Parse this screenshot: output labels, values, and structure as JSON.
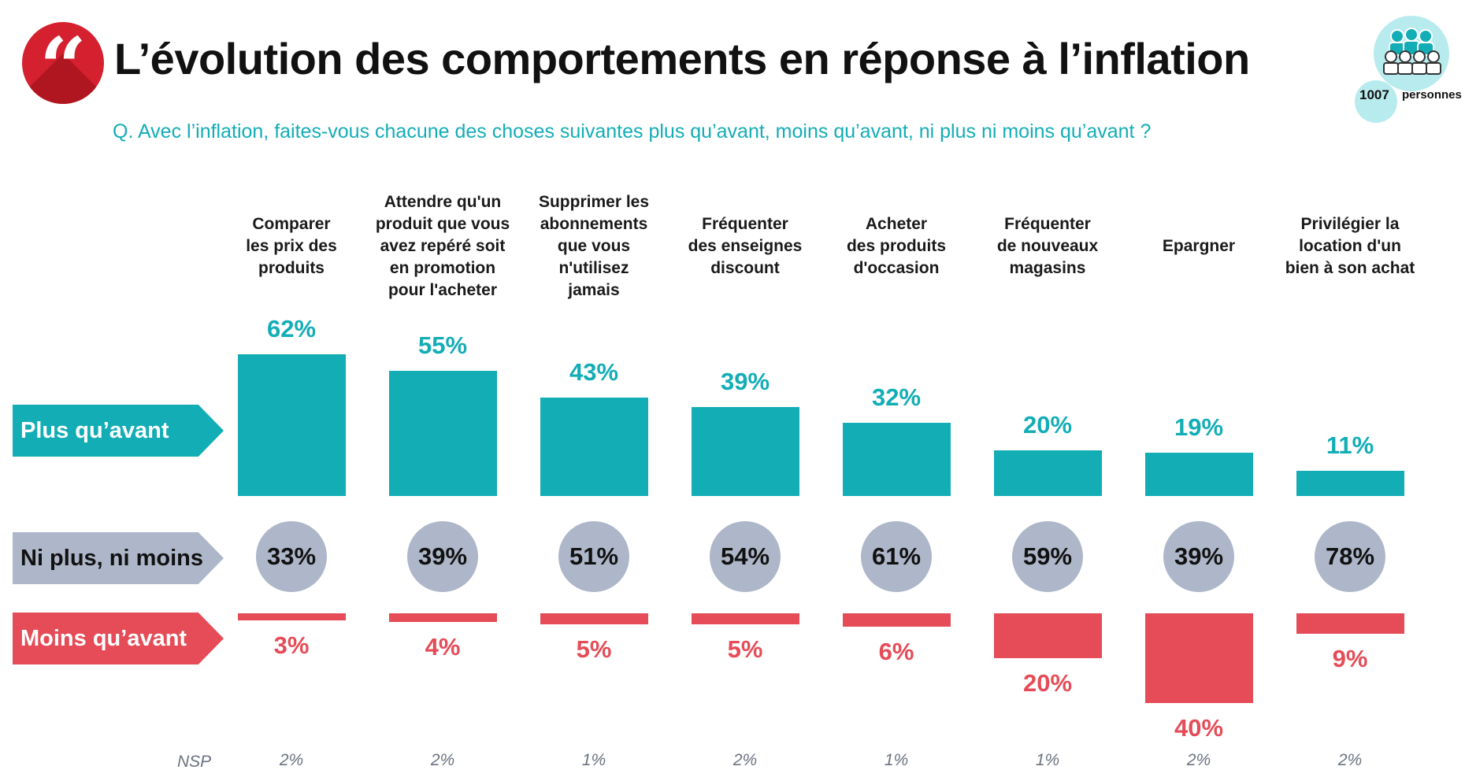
{
  "header": {
    "title": "L’évolution des comportements en réponse à l’inflation",
    "question": "Q. Avec l’inflation, faites-vous chacune des choses suivantes plus qu’avant, moins qu’avant, ni plus ni moins qu’avant ?",
    "quote_icon": "quote-icon",
    "sample_size": "1007",
    "sample_unit": "personnes",
    "sample_icon": "people-group-icon"
  },
  "colors": {
    "plus": "#13adb6",
    "ni": "#aeb7c9",
    "moins": "#e54c57",
    "badge": "#d4202f"
  },
  "row_labels": {
    "plus": "Plus qu’avant",
    "ni": "Ni plus, ni moins",
    "moins": "Moins qu’avant",
    "nsp": "NSP"
  },
  "chart_data": {
    "type": "bar",
    "categories": [
      "Comparer les prix des produits",
      "Attendre qu'un produit que vous avez repéré soit en promotion pour l'acheter",
      "Supprimer les abonnements que vous n'utilisez jamais",
      "Fréquenter des enseignes discount",
      "Acheter des produits d'occasion",
      "Fréquenter de nouveaux magasins",
      "Epargner",
      "Privilégier la location d'un bien à son achat"
    ],
    "category_lines": [
      [
        "Comparer",
        "les prix des",
        "produits"
      ],
      [
        "Attendre qu'un",
        "produit que vous",
        "avez repéré soit",
        "en promotion",
        "pour l'acheter"
      ],
      [
        "Supprimer les",
        "abonnements",
        "que vous",
        "n'utilisez",
        "jamais"
      ],
      [
        "Fréquenter",
        "des enseignes",
        "discount"
      ],
      [
        "Acheter",
        "des produits",
        "d'occasion"
      ],
      [
        "Fréquenter",
        "de nouveaux",
        "magasins"
      ],
      [
        "Epargner"
      ],
      [
        "Privilégier la",
        "location d'un",
        "bien à son achat"
      ]
    ],
    "series": [
      {
        "name": "Plus qu’avant",
        "values": [
          62,
          55,
          43,
          39,
          32,
          20,
          19,
          11
        ]
      },
      {
        "name": "Ni plus, ni moins",
        "values": [
          33,
          39,
          51,
          54,
          61,
          59,
          39,
          78
        ]
      },
      {
        "name": "Moins qu’avant",
        "values": [
          3,
          4,
          5,
          5,
          6,
          20,
          40,
          9
        ]
      },
      {
        "name": "NSP",
        "values": [
          2,
          2,
          1,
          2,
          1,
          1,
          2,
          2
        ]
      }
    ],
    "unit": "%"
  }
}
